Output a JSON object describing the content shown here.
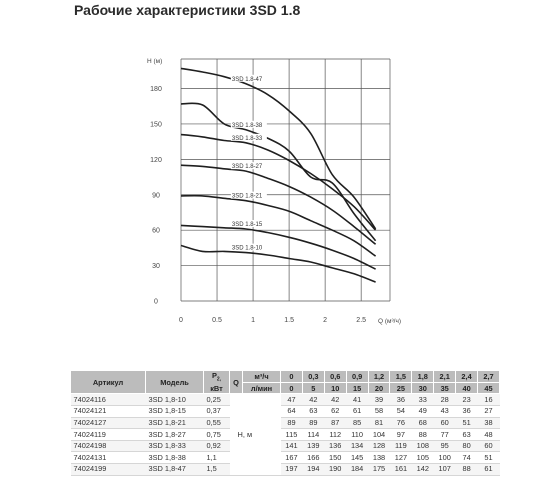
{
  "page": {
    "title": "Рабочие характеристики 3SD 1.8"
  },
  "chart_data": {
    "type": "line",
    "xlabel": "Q (м³/ч)",
    "ylabel": "H (м)",
    "xlim": [
      0,
      2.7
    ],
    "ylim": [
      0,
      200
    ],
    "x_ticks": [
      "0",
      "0.5",
      "1",
      "1.5",
      "2",
      "2.5"
    ],
    "y_ticks": [
      "0",
      "30",
      "60",
      "90",
      "120",
      "150",
      "180"
    ],
    "grid": true,
    "series": [
      {
        "name": "3SD 1.8-47",
        "x": [
          0,
          0.3,
          0.6,
          0.9,
          1.2,
          1.5,
          1.8,
          2.1,
          2.4,
          2.7
        ],
        "values": [
          197,
          194,
          190,
          184,
          175,
          161,
          142,
          107,
          88,
          61
        ]
      },
      {
        "name": "3SD 1.8-38",
        "x": [
          0,
          0.3,
          0.6,
          0.9,
          1.2,
          1.5,
          1.8,
          2.1,
          2.4,
          2.7
        ],
        "values": [
          167,
          166,
          150,
          145,
          138,
          127,
          105,
          100,
          74,
          51
        ]
      },
      {
        "name": "3SD 1.8-33",
        "x": [
          0,
          0.3,
          0.6,
          0.9,
          1.2,
          1.5,
          1.8,
          2.1,
          2.4,
          2.7
        ],
        "values": [
          141,
          139,
          136,
          134,
          128,
          119,
          108,
          95,
          80,
          60
        ]
      },
      {
        "name": "3SD 1.8-27",
        "x": [
          0,
          0.3,
          0.6,
          0.9,
          1.2,
          1.5,
          1.8,
          2.1,
          2.4,
          2.7
        ],
        "values": [
          115,
          114,
          112,
          110,
          104,
          97,
          88,
          77,
          63,
          48
        ]
      },
      {
        "name": "3SD 1.8-21",
        "x": [
          0,
          0.3,
          0.6,
          0.9,
          1.2,
          1.5,
          1.8,
          2.1,
          2.4,
          2.7
        ],
        "values": [
          89,
          89,
          87,
          85,
          81,
          76,
          68,
          60,
          51,
          38
        ]
      },
      {
        "name": "3SD 1.8-15",
        "x": [
          0,
          0.3,
          0.6,
          0.9,
          1.2,
          1.5,
          1.8,
          2.1,
          2.4,
          2.7
        ],
        "values": [
          64,
          63,
          62,
          61,
          58,
          54,
          49,
          43,
          36,
          27
        ]
      },
      {
        "name": "3SD 1.8-10",
        "x": [
          0,
          0.3,
          0.6,
          0.9,
          1.2,
          1.5,
          1.8,
          2.1,
          2.4,
          2.7
        ],
        "values": [
          47,
          42,
          42,
          41,
          39,
          36,
          33,
          28,
          23,
          16
        ]
      }
    ]
  },
  "table": {
    "headers": {
      "article": "Артикул",
      "model": "Модель",
      "power_symbol": "P",
      "power_sub": "2,",
      "power_unit": "кВт",
      "q": "Q",
      "m3h": "м³/ч",
      "lmin": "л/мин"
    },
    "q_m3h": [
      "0",
      "0,3",
      "0,6",
      "0,9",
      "1,2",
      "1,5",
      "1,8",
      "2,1",
      "2,4",
      "2,7"
    ],
    "q_lmin": [
      "0",
      "5",
      "10",
      "15",
      "20",
      "25",
      "30",
      "35",
      "40",
      "45"
    ],
    "head_unit": "Н, м",
    "rows": [
      {
        "article": "74024116",
        "model": "3SD 1,8-10",
        "power": "0,25",
        "h": [
          "47",
          "42",
          "42",
          "41",
          "39",
          "36",
          "33",
          "28",
          "23",
          "16"
        ]
      },
      {
        "article": "74024121",
        "model": "3SD 1,8-15",
        "power": "0,37",
        "h": [
          "64",
          "63",
          "62",
          "61",
          "58",
          "54",
          "49",
          "43",
          "36",
          "27"
        ]
      },
      {
        "article": "74024127",
        "model": "3SD 1,8-21",
        "power": "0,55",
        "h": [
          "89",
          "89",
          "87",
          "85",
          "81",
          "76",
          "68",
          "60",
          "51",
          "38"
        ]
      },
      {
        "article": "74024119",
        "model": "3SD 1,8-27",
        "power": "0,75",
        "h": [
          "115",
          "114",
          "112",
          "110",
          "104",
          "97",
          "88",
          "77",
          "63",
          "48"
        ]
      },
      {
        "article": "74024198",
        "model": "3SD 1,8-33",
        "power": "0,92",
        "h": [
          "141",
          "139",
          "136",
          "134",
          "128",
          "119",
          "108",
          "95",
          "80",
          "60"
        ]
      },
      {
        "article": "74024131",
        "model": "3SD 1,8-38",
        "power": "1,1",
        "h": [
          "167",
          "166",
          "150",
          "145",
          "138",
          "127",
          "105",
          "100",
          "74",
          "51"
        ]
      },
      {
        "article": "74024199",
        "model": "3SD 1,8-47",
        "power": "1,5",
        "h": [
          "197",
          "194",
          "190",
          "184",
          "175",
          "161",
          "142",
          "107",
          "88",
          "61"
        ]
      }
    ]
  }
}
